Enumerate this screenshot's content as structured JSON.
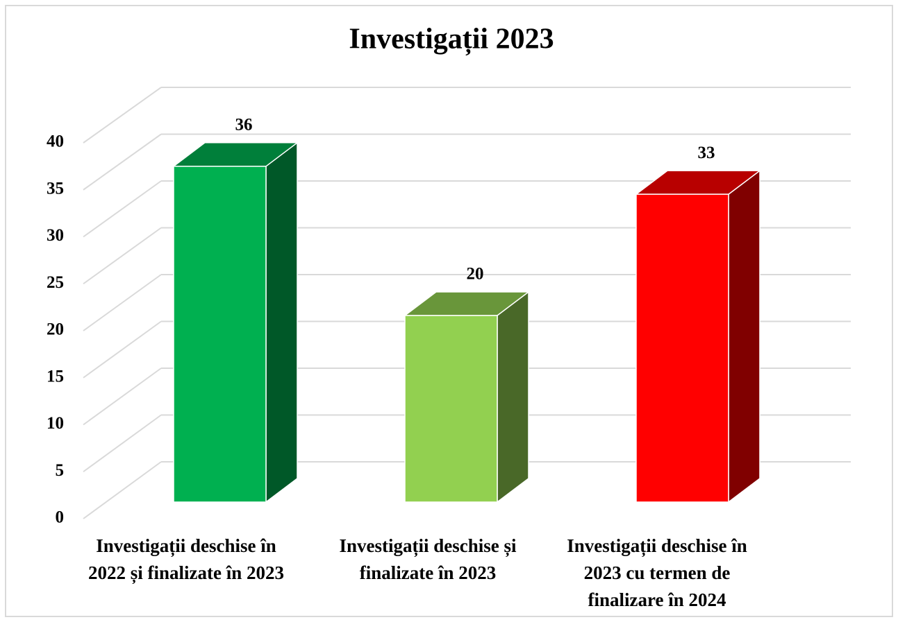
{
  "chart_data": {
    "type": "bar3d",
    "title": "Investigații 2023",
    "categories": [
      "Investigații deschise în 2022 și finalizate în 2023",
      "Investigații deschise și finalizate în 2023",
      "Investigații deschise în 2023 cu termen de finalizare în 2024"
    ],
    "values": [
      36,
      20,
      33
    ],
    "colors": [
      "#00b050",
      "#92d050",
      "#ff0000"
    ],
    "ylim": [
      0,
      40
    ],
    "yticks": [
      0,
      5,
      10,
      15,
      20,
      25,
      30,
      35,
      40
    ],
    "grid": true
  }
}
